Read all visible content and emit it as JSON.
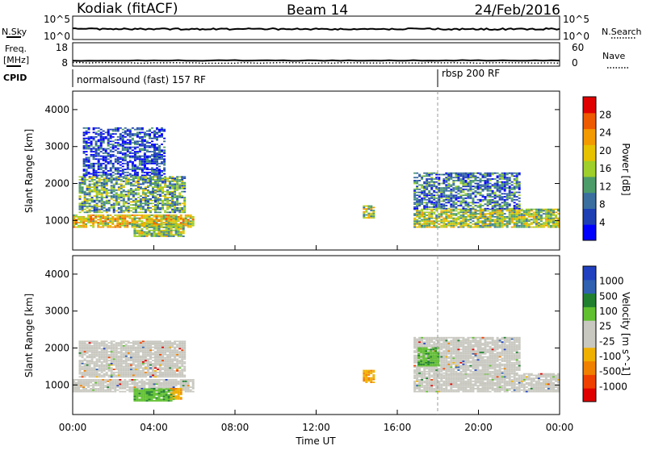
{
  "header": {
    "station": "Kodiak (fitACF)",
    "beam": "Beam 14",
    "date": "24/Feb/2016"
  },
  "top_panels": {
    "nsky_label": "N.Sky",
    "nsky_ticks": [
      "10^5",
      "10^0"
    ],
    "nsearch_label": "N.Search",
    "nsearch_ticks": [
      "10^5",
      "10^0"
    ],
    "freq_label_line1": "Freq.",
    "freq_label_line2": "[MHz]",
    "freq_ticks": [
      "18",
      "8"
    ],
    "nave_label": "Nave",
    "nave_ticks": [
      "60",
      "0"
    ],
    "cpid_label": "CPID",
    "cpid_segments": [
      {
        "label": "normalsound (fast) 157 RF",
        "start_hour": 0
      },
      {
        "label": "rbsp 200 RF",
        "start_hour": 18
      }
    ]
  },
  "colors": {
    "power_scale": [
      "#0000ff",
      "#1e3fb4",
      "#3a6fa0",
      "#4c9c6a",
      "#9fcf2a",
      "#e6c200",
      "#f29a00",
      "#ee5a00",
      "#e00000"
    ],
    "velocity_scale": [
      "#e00000",
      "#f04000",
      "#f08000",
      "#f0b000",
      "#c8c8c0",
      "#c8c8c0",
      "#60c030",
      "#208030",
      "#3060b0",
      "#2040c0"
    ],
    "ground_scatter": "#c8c8c0"
  },
  "chart_data": [
    {
      "type": "heatmap",
      "name": "power",
      "ylabel": "Slant Range [km]",
      "colorbar_label": "Power [dB]",
      "colorbar_ticks": [
        "4",
        "8",
        "12",
        "16",
        "20",
        "24",
        "28"
      ],
      "xlim": [
        0,
        24
      ],
      "ylim": [
        200,
        4500
      ],
      "yticks": [
        "1000",
        "2000",
        "3000",
        "4000"
      ],
      "x_ticks": [
        "00:00",
        "04:00",
        "08:00",
        "12:00",
        "16:00",
        "20:00",
        "00:00"
      ],
      "xlabel": "Time UT",
      "regions": [
        {
          "t0": 0.0,
          "t1": 6.0,
          "r0": 800,
          "r1": 1150,
          "level": 0.6
        },
        {
          "t0": 0.3,
          "t1": 5.5,
          "r0": 1200,
          "r1": 2200,
          "level": 0.35
        },
        {
          "t0": 0.5,
          "t1": 4.5,
          "r0": 2200,
          "r1": 3500,
          "level": 0.15
        },
        {
          "t0": 3.0,
          "t1": 5.5,
          "r0": 550,
          "r1": 900,
          "level": 0.55
        },
        {
          "t0": 14.3,
          "t1": 14.8,
          "r0": 1050,
          "r1": 1400,
          "level": 0.45
        },
        {
          "t0": 16.8,
          "t1": 24.0,
          "r0": 800,
          "r1": 1300,
          "level": 0.55
        },
        {
          "t0": 16.8,
          "t1": 22.0,
          "r0": 1300,
          "r1": 2300,
          "level": 0.25
        }
      ]
    },
    {
      "type": "heatmap",
      "name": "velocity",
      "ylabel": "Slant Range [km]",
      "colorbar_label": "Velocity [m s^-1]",
      "colorbar_ticks": [
        "-1000",
        "-500",
        "-100",
        "-25",
        "25",
        "100",
        "500",
        "1000"
      ],
      "xlim": [
        0,
        24
      ],
      "ylim": [
        200,
        4500
      ],
      "yticks": [
        "1000",
        "2000",
        "3000",
        "4000"
      ],
      "x_ticks": [
        "00:00",
        "04:00",
        "08:00",
        "12:00",
        "16:00",
        "20:00",
        "00:00"
      ],
      "xlabel": "Time UT",
      "regions": [
        {
          "t0": 0.0,
          "t1": 6.0,
          "r0": 800,
          "r1": 1150,
          "kind": "ground"
        },
        {
          "t0": 0.3,
          "t1": 5.5,
          "r0": 1200,
          "r1": 2200,
          "kind": "ground"
        },
        {
          "t0": 3.0,
          "t1": 5.0,
          "r0": 550,
          "r1": 900,
          "kind": "positive"
        },
        {
          "t0": 4.8,
          "t1": 5.4,
          "r0": 600,
          "r1": 900,
          "kind": "negative"
        },
        {
          "t0": 14.3,
          "t1": 14.8,
          "r0": 1050,
          "r1": 1400,
          "kind": "negative"
        },
        {
          "t0": 16.8,
          "t1": 24.0,
          "r0": 800,
          "r1": 1300,
          "kind": "ground"
        },
        {
          "t0": 16.8,
          "t1": 22.0,
          "r0": 1300,
          "r1": 2300,
          "kind": "ground"
        },
        {
          "t0": 17.0,
          "t1": 18.0,
          "r0": 1500,
          "r1": 2000,
          "kind": "positive"
        }
      ]
    }
  ]
}
